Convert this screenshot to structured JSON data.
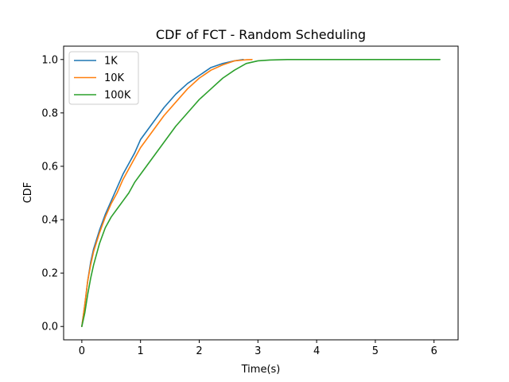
{
  "chart_data": {
    "type": "line",
    "title": "CDF of FCT - Random Scheduling",
    "xlabel": "Time(s)",
    "ylabel": "CDF",
    "xlim": [
      -0.31,
      6.41
    ],
    "ylim": [
      -0.05,
      1.05
    ],
    "x_ticks": [
      0,
      1,
      2,
      3,
      4,
      5,
      6
    ],
    "y_ticks": [
      0.0,
      0.2,
      0.4,
      0.6,
      0.8,
      1.0
    ],
    "x_tick_labels": [
      "0",
      "1",
      "2",
      "3",
      "4",
      "5",
      "6"
    ],
    "y_tick_labels": [
      "0.0",
      "0.2",
      "0.4",
      "0.6",
      "0.8",
      "1.0"
    ],
    "grid": false,
    "legend_position": "top-left",
    "series": [
      {
        "name": "1K",
        "color": "#1f77b4",
        "x": [
          0.0,
          0.05,
          0.1,
          0.15,
          0.2,
          0.3,
          0.4,
          0.5,
          0.6,
          0.7,
          0.8,
          0.9,
          1.0,
          1.2,
          1.4,
          1.6,
          1.8,
          2.0,
          2.2,
          2.4,
          2.6,
          2.75
        ],
        "y": [
          0.0,
          0.08,
          0.17,
          0.24,
          0.29,
          0.36,
          0.42,
          0.47,
          0.52,
          0.57,
          0.61,
          0.65,
          0.7,
          0.76,
          0.82,
          0.87,
          0.91,
          0.94,
          0.97,
          0.985,
          0.995,
          1.0
        ]
      },
      {
        "name": "10K",
        "color": "#ff7f0e",
        "x": [
          0.0,
          0.05,
          0.1,
          0.15,
          0.2,
          0.3,
          0.4,
          0.5,
          0.6,
          0.7,
          0.8,
          0.9,
          1.0,
          1.2,
          1.4,
          1.6,
          1.8,
          2.0,
          2.2,
          2.4,
          2.6,
          2.8,
          2.9
        ],
        "y": [
          0.0,
          0.08,
          0.17,
          0.23,
          0.28,
          0.35,
          0.41,
          0.46,
          0.5,
          0.55,
          0.59,
          0.63,
          0.67,
          0.73,
          0.79,
          0.84,
          0.89,
          0.93,
          0.96,
          0.98,
          0.995,
          0.999,
          1.0
        ]
      },
      {
        "name": "100K",
        "color": "#2ca02c",
        "x": [
          0.0,
          0.05,
          0.1,
          0.15,
          0.2,
          0.3,
          0.4,
          0.5,
          0.6,
          0.7,
          0.8,
          0.9,
          1.0,
          1.2,
          1.4,
          1.6,
          1.8,
          2.0,
          2.2,
          2.4,
          2.6,
          2.8,
          3.0,
          3.2,
          3.5,
          4.0,
          5.0,
          6.1
        ],
        "y": [
          0.0,
          0.05,
          0.12,
          0.18,
          0.23,
          0.31,
          0.37,
          0.41,
          0.44,
          0.47,
          0.5,
          0.54,
          0.57,
          0.63,
          0.69,
          0.75,
          0.8,
          0.85,
          0.89,
          0.93,
          0.96,
          0.985,
          0.995,
          0.998,
          1.0,
          1.0,
          1.0,
          1.0
        ]
      }
    ]
  }
}
